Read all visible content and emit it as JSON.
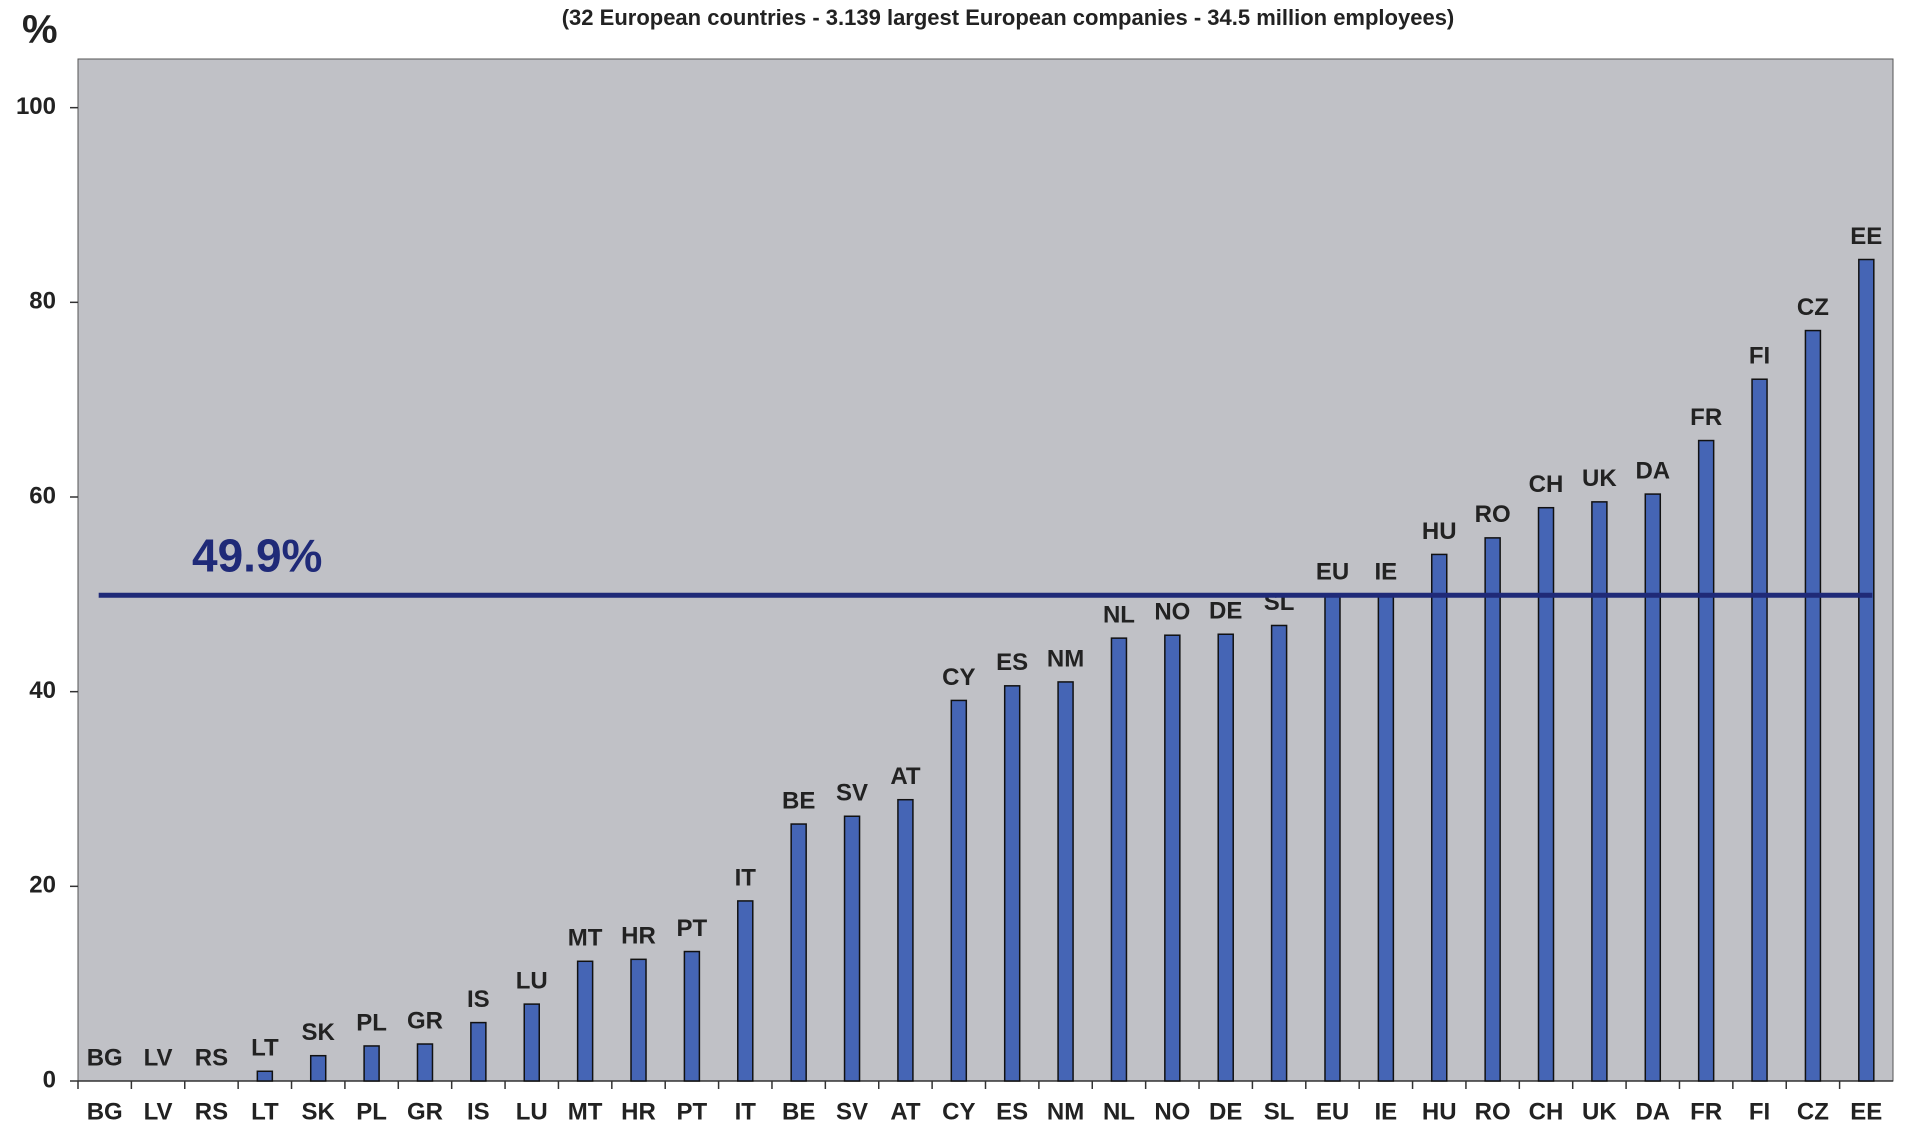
{
  "chart_data": {
    "type": "bar",
    "y_label": "%",
    "subtitle": "(32 European countries - 3.139 largest European companies - 34.5 million employees)",
    "categories": [
      "BG",
      "LV",
      "RS",
      "LT",
      "SK",
      "PL",
      "GR",
      "IS",
      "LU",
      "MT",
      "HR",
      "PT",
      "IT",
      "BE",
      "SV",
      "AT",
      "CY",
      "ES",
      "NM",
      "NL",
      "NO",
      "DE",
      "SL",
      "EU",
      "IE",
      "HU",
      "RO",
      "CH",
      "UK",
      "DA",
      "FR",
      "FI",
      "CZ",
      "EE"
    ],
    "values": [
      0,
      0,
      0,
      1.0,
      2.6,
      3.6,
      3.8,
      6.0,
      7.9,
      12.3,
      12.5,
      13.3,
      18.5,
      26.4,
      27.2,
      28.9,
      39.1,
      40.6,
      41.0,
      45.5,
      45.8,
      45.9,
      46.8,
      49.9,
      49.9,
      54.1,
      55.8,
      58.9,
      59.5,
      60.3,
      65.8,
      72.1,
      77.1,
      84.4
    ],
    "color": "#4565b5",
    "ylim": [
      0,
      105
    ],
    "yticks": [
      0,
      20,
      40,
      60,
      80,
      100
    ],
    "reference_line": {
      "value": 49.9,
      "label": "49.9%",
      "color": "#1f2a78"
    },
    "plot_background": "#c0c1c6"
  }
}
